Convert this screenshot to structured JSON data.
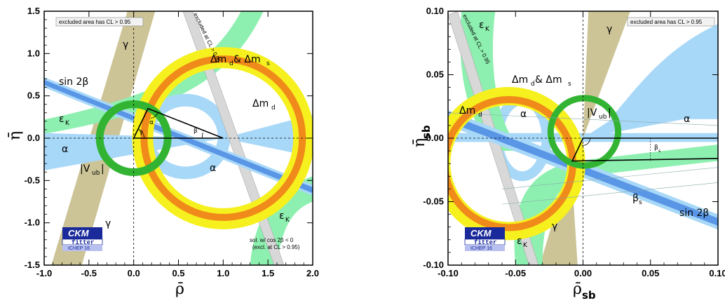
{
  "colors": {
    "yellow": "#f5f01e",
    "orange": "#f08a1a",
    "green": "#32b432",
    "light_green": "#8ef0b0",
    "light_blue": "#a8d8f8",
    "blue": "#5a96e6",
    "olive": "#ccc496",
    "grey": "#d8d8d8",
    "logo_blue": "#1a2a9a"
  },
  "chart_data": [
    {
      "type": "scatter",
      "xlabel": "ρ̄",
      "ylabel": "η̄",
      "xlim": [
        -1.0,
        2.0
      ],
      "ylim": [
        -1.5,
        1.5
      ],
      "x_ticks": [
        "-1.0",
        "-0.5",
        "0.0",
        "0.5",
        "1.0",
        "1.5",
        "2.0"
      ],
      "y_ticks": [
        "-1.5",
        "-1.0",
        "-0.5",
        "0.0",
        "0.5",
        "1.0",
        "1.5"
      ],
      "apex": {
        "x": 0.16,
        "y": 0.35
      },
      "vertices": [
        {
          "x": 0,
          "y": 0
        },
        {
          "x": 1,
          "y": 0
        }
      ],
      "constraints": [
        {
          "name": "Δm_d & Δm_s",
          "type": "circle",
          "center": [
            1,
            0
          ],
          "radius": 0.9
        },
        {
          "name": "|V_ub|",
          "type": "circle",
          "center": [
            0,
            0
          ],
          "radius": 0.38
        },
        {
          "name": "sin 2β",
          "type": "line",
          "slope_eta_per_rho": -0.42
        },
        {
          "name": "α",
          "type": "circle_band",
          "center": [
            0.5,
            0
          ],
          "radius": 0.43
        }
      ],
      "labels": {
        "note": "excluded area has CL > 0.95",
        "excluded": "excluded at CL > 0.95",
        "gamma": "γ",
        "sin2beta": "sin 2β",
        "epsK": "ε",
        "epsK_sub": "K",
        "dmd": "Δm",
        "dmd_sub": "d",
        "dmds_a": "Δm",
        "dmds_a_sub": "d",
        "dmds_amp": " & Δm",
        "dmds_b_sub": "s",
        "alpha": "α",
        "vub_a": "|V",
        "vub_sub": "ub",
        "vub_b": "|",
        "beta": "β",
        "sol1": "sol. w/ cos 2β < 0",
        "sol2": "(excl. at CL > 0.95)"
      },
      "logo": {
        "line1": "CKM",
        "line2": "fitter",
        "line3": "ICHEP 16"
      }
    },
    {
      "type": "scatter",
      "xlabel": "ρ̄",
      "xlabel_sub": "sb",
      "ylabel": "η̄",
      "ylabel_sub": "sb",
      "xlim": [
        -0.1,
        0.1
      ],
      "ylim": [
        -0.1,
        0.1
      ],
      "x_ticks": [
        "-0.10",
        "-0.05",
        "0.00",
        "0.05",
        "0.10"
      ],
      "y_ticks": [
        "-0.10",
        "-0.05",
        "0.00",
        "0.05",
        "0.10"
      ],
      "apex": {
        "x": -0.008,
        "y": -0.018
      },
      "vertices": [
        {
          "x": 0,
          "y": 0
        },
        {
          "x": 0.1,
          "y": 0
        }
      ],
      "labels": {
        "note": "excluded area has CL > 0.95",
        "excluded": "excluded at CL > 0.95",
        "gamma": "γ",
        "sin2beta": "sin 2β",
        "epsK": "ε",
        "epsK_sub": "K",
        "dmd": "Δm",
        "dmd_sub": "d",
        "dmds_a": "Δm",
        "dmds_a_sub": "d",
        "dmds_amp": " & Δm",
        "dmds_b_sub": "s",
        "alpha": "α",
        "vub_a": "|V",
        "vub_sub": "ub",
        "vub_b": "|",
        "betas": "β",
        "betas_sub": "s",
        "betas_small": "β",
        "betas_small_sub": "s"
      },
      "logo": {
        "line1": "CKM",
        "line2": "fitter",
        "line3": "ICHEP 16"
      }
    }
  ]
}
